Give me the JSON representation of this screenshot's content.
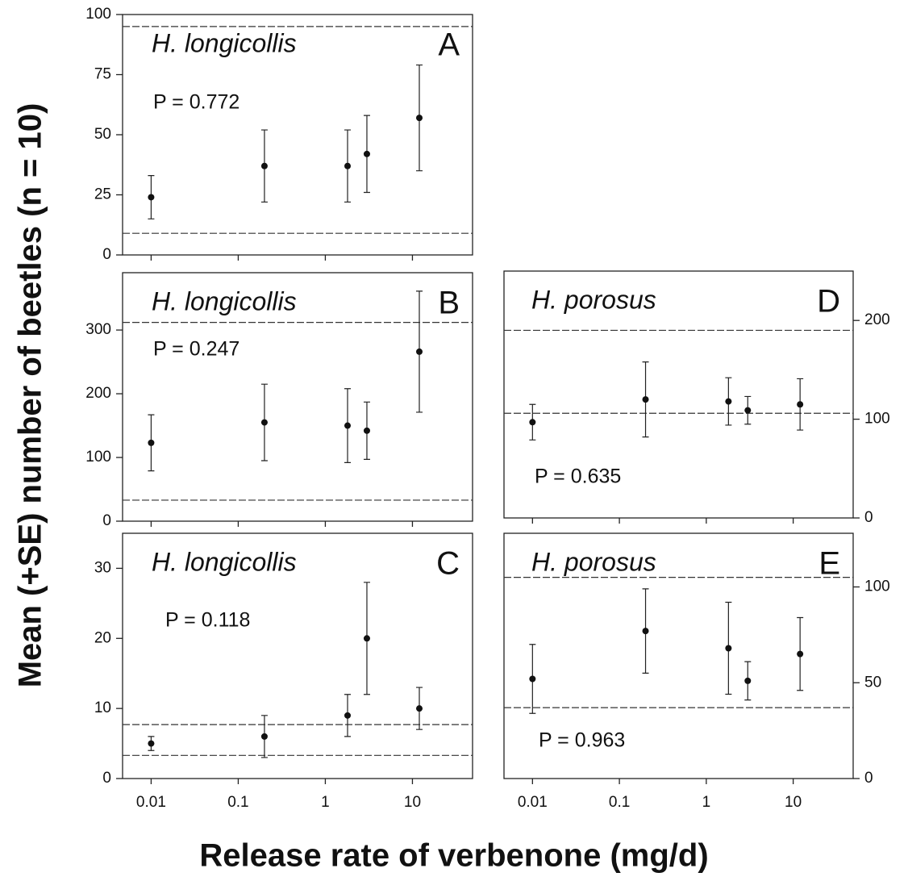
{
  "axis_labels": {
    "x": "Release rate of verbenone (mg/d)",
    "y": "Mean (+SE) number of beetles (n = 10)"
  },
  "chart_data": [
    {
      "type": "scatter",
      "title": "A",
      "species": "H. longicollis",
      "annotation": "P = 0.772",
      "y_axis": "left",
      "log_x": true,
      "xtick_labels": false,
      "x": [
        0.01,
        0.2,
        1.8,
        3,
        12
      ],
      "values": [
        24,
        37,
        37,
        42,
        57
      ],
      "errors": [
        9,
        15,
        15,
        16,
        22
      ],
      "reference_lines": [
        95,
        9
      ],
      "xlim": [
        0.0047,
        49
      ],
      "xticks": [
        0.01,
        0.1,
        1,
        10
      ],
      "ylim": [
        0,
        100
      ],
      "yticks": [
        0,
        25,
        50,
        75,
        100
      ]
    },
    {
      "type": "scatter",
      "title": "B",
      "species": "H. longicollis",
      "annotation": "P = 0.247",
      "y_axis": "left",
      "log_x": true,
      "xtick_labels": false,
      "x": [
        0.01,
        0.2,
        1.8,
        3,
        12
      ],
      "values": [
        123,
        155,
        150,
        142,
        266
      ],
      "errors": [
        44,
        60,
        58,
        45,
        95
      ],
      "reference_lines": [
        312,
        33
      ],
      "xlim": [
        0.0047,
        49
      ],
      "xticks": [
        0.01,
        0.1,
        1,
        10
      ],
      "ylim": [
        0,
        390
      ],
      "yticks": [
        0,
        100,
        200,
        300
      ]
    },
    {
      "type": "scatter",
      "title": "C",
      "species": "H. longicollis",
      "annotation": "P = 0.118",
      "y_axis": "left",
      "log_x": true,
      "xtick_labels": true,
      "x": [
        0.01,
        0.2,
        1.8,
        3,
        12
      ],
      "values": [
        5,
        6,
        9,
        20,
        10
      ],
      "errors": [
        1,
        3,
        3,
        8,
        3
      ],
      "reference_lines": [
        7.7,
        3.3
      ],
      "xlim": [
        0.0047,
        49
      ],
      "xticks": [
        0.01,
        0.1,
        1,
        10
      ],
      "ylim": [
        0,
        35
      ],
      "yticks": [
        0,
        10,
        20,
        30
      ]
    },
    {
      "type": "scatter",
      "title": "D",
      "species": "H. porosus",
      "annotation": "P = 0.635",
      "y_axis": "right",
      "log_x": true,
      "xtick_labels": false,
      "x": [
        0.01,
        0.2,
        1.8,
        3,
        12
      ],
      "values": [
        97,
        120,
        118,
        109,
        115
      ],
      "errors": [
        18,
        38,
        24,
        14,
        26
      ],
      "reference_lines": [
        190,
        106
      ],
      "xlim": [
        0.0047,
        49
      ],
      "xticks": [
        0.01,
        0.1,
        1,
        10
      ],
      "ylim": [
        0,
        250
      ],
      "yticks": [
        0,
        100,
        200
      ]
    },
    {
      "type": "scatter",
      "title": "E",
      "species": "H. porosus",
      "annotation": "P = 0.963",
      "y_axis": "right",
      "log_x": true,
      "xtick_labels": true,
      "x": [
        0.01,
        0.2,
        1.8,
        3,
        12
      ],
      "values": [
        52,
        77,
        68,
        51,
        65
      ],
      "errors": [
        18,
        22,
        24,
        10,
        19
      ],
      "reference_lines": [
        105,
        37
      ],
      "xlim": [
        0.0047,
        49
      ],
      "xticks": [
        0.01,
        0.1,
        1,
        10
      ],
      "ylim": [
        0,
        128
      ],
      "yticks": [
        0,
        50,
        100
      ]
    }
  ]
}
